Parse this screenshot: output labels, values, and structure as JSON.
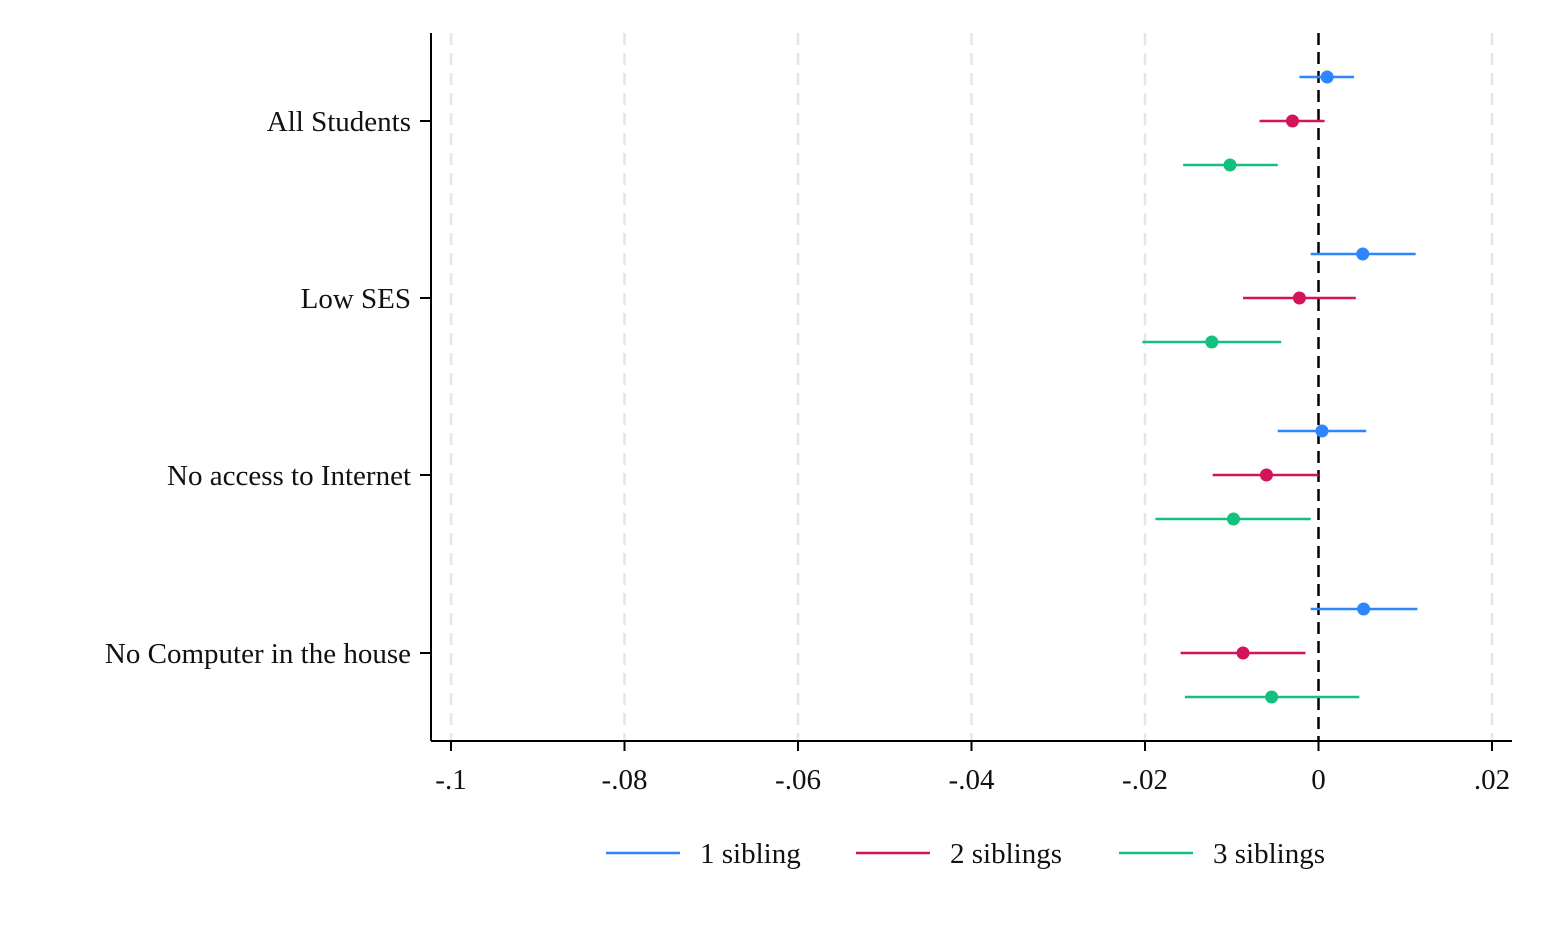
{
  "chart_data": {
    "type": "coefficient-plot",
    "title": "",
    "xlabel": "",
    "ylabel": "",
    "xlim": [
      -0.1025,
      0.0225
    ],
    "x_ticks": [
      -0.1,
      -0.08,
      -0.06,
      -0.04,
      -0.02,
      0,
      0.02
    ],
    "x_tick_labels": [
      "-.1",
      "-.08",
      "-.06",
      "-.04",
      "-.02",
      "0",
      ".02"
    ],
    "grid": "vertical dashed",
    "reference_line": {
      "x": 0,
      "style": "dashed",
      "color": "#000000"
    },
    "categories": [
      "All Students",
      "Low SES",
      "No access to Internet",
      "No Computer in the house"
    ],
    "legend": {
      "placement": "bottom"
    },
    "series": [
      {
        "name": "1 sibling",
        "color": "#2E86FF",
        "points": [
          {
            "est": 0.001,
            "lo": -0.0022,
            "hi": 0.0041
          },
          {
            "est": 0.0051,
            "lo": -0.0009,
            "hi": 0.0112
          },
          {
            "est": 0.0004,
            "lo": -0.0047,
            "hi": 0.0055
          },
          {
            "est": 0.0052,
            "lo": -0.0009,
            "hi": 0.0114
          }
        ]
      },
      {
        "name": "2 siblings",
        "color": "#D4145A",
        "points": [
          {
            "est": -0.003,
            "lo": -0.0068,
            "hi": 0.0007
          },
          {
            "est": -0.0022,
            "lo": -0.0087,
            "hi": 0.0043
          },
          {
            "est": -0.006,
            "lo": -0.0122,
            "hi": 0.0
          },
          {
            "est": -0.0087,
            "lo": -0.0159,
            "hi": -0.0015
          }
        ]
      },
      {
        "name": "3 siblings",
        "color": "#14C07E",
        "points": [
          {
            "est": -0.0102,
            "lo": -0.0156,
            "hi": -0.0047
          },
          {
            "est": -0.0123,
            "lo": -0.0203,
            "hi": -0.0043
          },
          {
            "est": -0.0098,
            "lo": -0.0188,
            "hi": -0.0009
          },
          {
            "est": -0.0054,
            "lo": -0.0154,
            "hi": 0.0047
          }
        ]
      }
    ]
  }
}
